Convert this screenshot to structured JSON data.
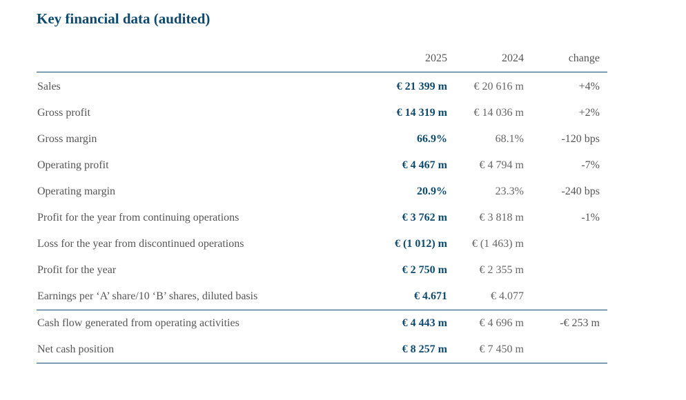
{
  "title": "Key financial data (audited)",
  "columns": {
    "y2025": "2025",
    "y2024": "2024",
    "change": "change"
  },
  "rows": [
    {
      "label": "Sales",
      "y2025": "€ 21 399 m",
      "y2024": "€ 20 616 m",
      "change": "+4%"
    },
    {
      "label": "Gross profit",
      "y2025": "€ 14 319 m",
      "y2024": "€ 14 036 m",
      "change": "+2%"
    },
    {
      "label": "Gross margin",
      "y2025": "66.9%",
      "y2024": "68.1%",
      "change": "-120 bps"
    },
    {
      "label": "Operating profit",
      "y2025": "€ 4 467 m",
      "y2024": "€ 4 794 m",
      "change": "-7%"
    },
    {
      "label": "Operating margin",
      "y2025": "20.9%",
      "y2024": "23.3%",
      "change": "-240 bps"
    },
    {
      "label": "Profit for the year from continuing operations",
      "y2025": "€ 3 762 m",
      "y2024": "€ 3 818 m",
      "change": "-1%"
    },
    {
      "label": "Loss for the year from discontinued operations",
      "y2025": "€ (1 012) m",
      "y2024": "€ (1 463) m",
      "change": ""
    },
    {
      "label": "Profit for the year",
      "y2025": "€ 2 750 m",
      "y2024": "€ 2 355 m",
      "change": ""
    },
    {
      "label": "Earnings per ‘A’ share/10 ‘B’ shares, diluted basis",
      "y2025": "€ 4.671",
      "y2024": "€ 4.077",
      "change": ""
    }
  ],
  "rows_cash": [
    {
      "label": "Cash flow generated from operating activities",
      "y2025": "€ 4 443 m",
      "y2024": "€ 4 696 m",
      "change": "-€ 253 m"
    },
    {
      "label": "Net cash position",
      "y2025": "€ 8 257 m",
      "y2024": "€ 7 450 m",
      "change": ""
    }
  ],
  "colors": {
    "accent": "#0d4a6e",
    "text": "#555555"
  }
}
